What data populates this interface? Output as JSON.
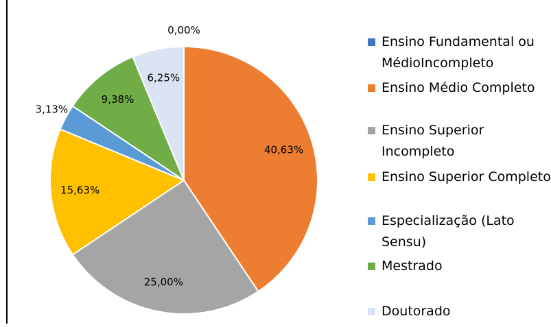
{
  "chart_data": {
    "type": "pie",
    "categories": [
      "Ensino Fundamental ou MédioIncompleto",
      "Ensino Médio Completo",
      "Ensino Superior Incompleto",
      "Ensino Superior Completo",
      "Especialização (Lato Sensu)",
      "Mestrado",
      "Doutorado"
    ],
    "values": [
      0,
      40.63,
      25,
      15.63,
      3.13,
      9.38,
      6.25
    ],
    "value_labels": [
      "0,00%",
      "40,63%",
      "25,00%",
      "15,63%",
      "3,13%",
      "9,38%",
      "6,25%"
    ],
    "colors": [
      "#4472c4",
      "#ed7d31",
      "#a5a5a5",
      "#ffc000",
      "#5b9bd5",
      "#70ad47",
      "#dae3f3"
    ],
    "legend": "right"
  }
}
